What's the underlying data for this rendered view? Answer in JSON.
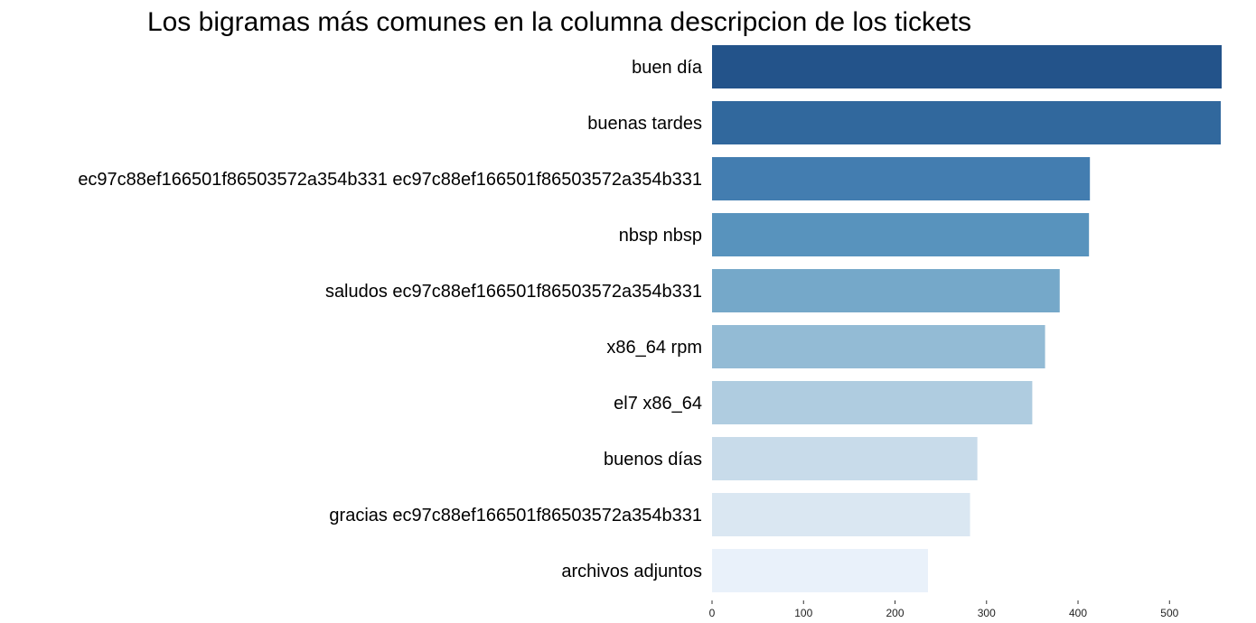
{
  "chart_data": {
    "type": "bar",
    "orientation": "horizontal",
    "title": "Los bigramas más comunes en la columna descripcion de los tickets",
    "xlabel": "",
    "ylabel": "",
    "categories": [
      "buen día",
      "buenas tardes",
      "ec97c88ef166501f86503572a354b331 ec97c88ef166501f86503572a354b331",
      "nbsp nbsp",
      "saludos ec97c88ef166501f86503572a354b331",
      "x86_64 rpm",
      "el7 x86_64",
      "buenos días",
      "gracias ec97c88ef166501f86503572a354b331",
      "archivos adjuntos"
    ],
    "values": [
      557,
      556,
      413,
      412,
      380,
      364,
      350,
      290,
      282,
      236
    ],
    "colors": [
      "#23538a",
      "#31689d",
      "#437db0",
      "#5893bd",
      "#75a8c9",
      "#93bbd5",
      "#afcce0",
      "#c8dbea",
      "#dae7f2",
      "#e9f1fa"
    ],
    "xlim": [
      0,
      557
    ],
    "xticks": [
      0,
      100,
      200,
      300,
      400,
      500
    ],
    "grid": false
  }
}
